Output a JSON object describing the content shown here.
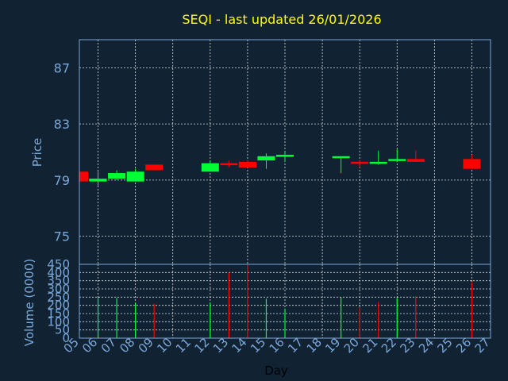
{
  "title": "SEQI - last updated 26/01/2026",
  "colors": {
    "background": "#112233",
    "up": "#00ff33",
    "down": "#ff0000",
    "axis": "#7aa8d8",
    "title": "#ffff00"
  },
  "chart_data": [
    {
      "type": "candlestick",
      "ylabel": "Price",
      "ylim": [
        73,
        89
      ],
      "yticks": [
        "75",
        "79",
        "83",
        "87"
      ],
      "xlim": [
        5,
        27
      ],
      "grid": true,
      "candles": [
        {
          "day": 5,
          "open": 79.6,
          "close": 78.9,
          "high": 79.6,
          "low": 78.9
        },
        {
          "day": 6,
          "open": 78.9,
          "close": 79.1,
          "high": 79.6,
          "low": 78.6
        },
        {
          "day": 7,
          "open": 79.1,
          "close": 79.5,
          "high": 79.7,
          "low": 79.0
        },
        {
          "day": 8,
          "open": 78.9,
          "close": 79.6,
          "high": 79.8,
          "low": 78.9
        },
        {
          "day": 9,
          "open": 80.1,
          "close": 79.7,
          "high": 80.1,
          "low": 79.7
        },
        {
          "day": 12,
          "open": 79.6,
          "close": 80.2,
          "high": 80.4,
          "low": 79.6
        },
        {
          "day": 13,
          "open": 80.2,
          "close": 80.1,
          "high": 80.4,
          "low": 79.9
        },
        {
          "day": 14,
          "open": 80.3,
          "close": 79.9,
          "high": 80.4,
          "low": 79.9
        },
        {
          "day": 15,
          "open": 80.4,
          "close": 80.7,
          "high": 80.9,
          "low": 79.8
        },
        {
          "day": 16,
          "open": 80.7,
          "close": 80.8,
          "high": 81.0,
          "low": 80.3
        },
        {
          "day": 19,
          "open": 80.6,
          "close": 80.7,
          "high": 80.7,
          "low": 79.5
        },
        {
          "day": 20,
          "open": 80.3,
          "close": 80.2,
          "high": 80.4,
          "low": 79.9
        },
        {
          "day": 21,
          "open": 80.3,
          "close": 80.3,
          "high": 81.1,
          "low": 80.1
        },
        {
          "day": 22,
          "open": 80.4,
          "close": 80.5,
          "high": 81.2,
          "low": 80.3
        },
        {
          "day": 23,
          "open": 80.5,
          "close": 80.3,
          "high": 81.1,
          "low": 80.3
        },
        {
          "day": 26,
          "open": 80.5,
          "close": 79.8,
          "high": 80.8,
          "low": 79.8
        }
      ]
    },
    {
      "type": "bar",
      "ylabel": "Volume (0000)",
      "xlabel": "Day",
      "ylim": [
        0,
        450
      ],
      "yticks": [
        "0",
        "50",
        "100",
        "150",
        "200",
        "250",
        "300",
        "350",
        "400",
        "450"
      ],
      "xticks": [
        "05",
        "06",
        "07",
        "08",
        "09",
        "10",
        "11",
        "12",
        "13",
        "14",
        "15",
        "16",
        "17",
        "18",
        "19",
        "20",
        "21",
        "22",
        "23",
        "24",
        "25",
        "26",
        "27"
      ],
      "grid": true,
      "bars": [
        {
          "day": 6,
          "volume": 245,
          "direction": "up"
        },
        {
          "day": 7,
          "volume": 245,
          "direction": "up"
        },
        {
          "day": 8,
          "volume": 215,
          "direction": "up"
        },
        {
          "day": 9,
          "volume": 210,
          "direction": "down"
        },
        {
          "day": 12,
          "volume": 215,
          "direction": "up"
        },
        {
          "day": 13,
          "volume": 400,
          "direction": "down"
        },
        {
          "day": 14,
          "volume": 450,
          "direction": "down"
        },
        {
          "day": 15,
          "volume": 240,
          "direction": "up"
        },
        {
          "day": 16,
          "volume": 180,
          "direction": "up"
        },
        {
          "day": 19,
          "volume": 250,
          "direction": "up"
        },
        {
          "day": 20,
          "volume": 190,
          "direction": "down"
        },
        {
          "day": 21,
          "volume": 220,
          "direction": "down"
        },
        {
          "day": 22,
          "volume": 245,
          "direction": "up"
        },
        {
          "day": 23,
          "volume": 255,
          "direction": "down"
        },
        {
          "day": 26,
          "volume": 340,
          "direction": "down"
        }
      ]
    }
  ]
}
